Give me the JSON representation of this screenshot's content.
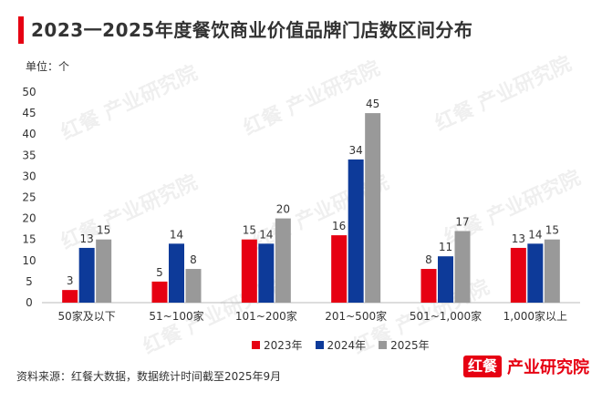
{
  "title": "2023一2025年度餐饮商业价值品牌门店数区间分布",
  "unit_label": "单位：个",
  "source": "资料来源：红餐大数据，数据统计时间截至2025年9月",
  "brand": {
    "logo_text": "红餐",
    "name": "产业研究院"
  },
  "watermark_text": "红餐 产业研究院",
  "colors": {
    "2023": "#e60012",
    "2024": "#0d3a99",
    "2025": "#999999",
    "accent": "#e60012"
  },
  "chart_data": {
    "type": "bar",
    "categories": [
      "50家及以下",
      "51~100家",
      "101~200家",
      "201~500家",
      "501~1,000家",
      "1,000家以上"
    ],
    "series": [
      {
        "name": "2023年",
        "values": [
          3,
          5,
          15,
          16,
          8,
          13
        ]
      },
      {
        "name": "2024年",
        "values": [
          13,
          14,
          14,
          34,
          11,
          14
        ]
      },
      {
        "name": "2025年",
        "values": [
          15,
          8,
          20,
          45,
          17,
          15
        ]
      }
    ],
    "ylim": [
      0,
      50
    ],
    "yticks": [
      "0",
      "5",
      "10",
      "15",
      "20",
      "25",
      "30",
      "35",
      "40",
      "45",
      "50"
    ],
    "grid": false,
    "legend": "bottom"
  }
}
